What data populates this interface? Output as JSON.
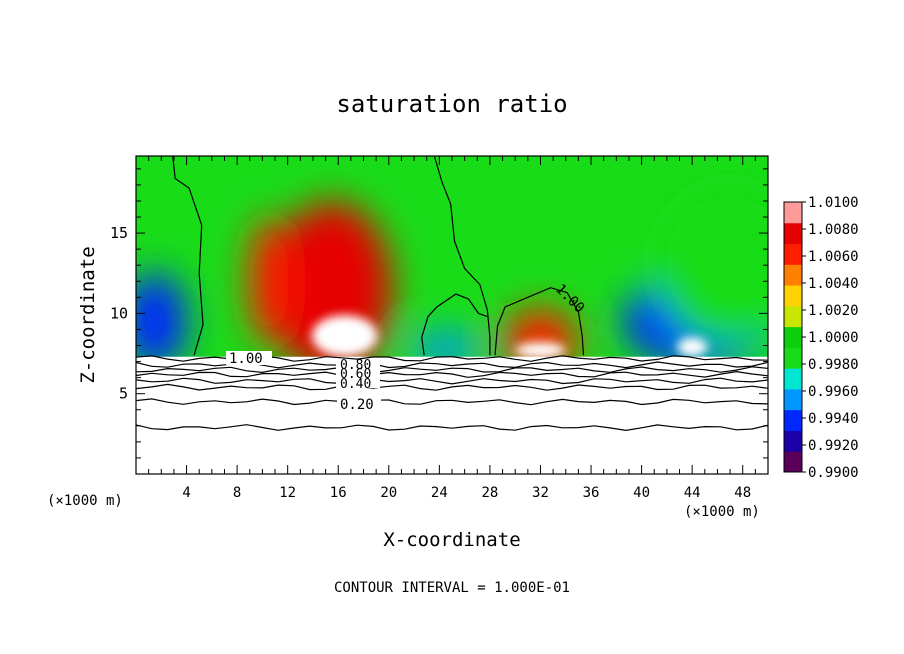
{
  "chart_data": {
    "type": "heatmap",
    "title": "saturation ratio",
    "xlabel": "X-coordinate",
    "ylabel": "Z-coordinate",
    "x_unit": "(×1000 m)",
    "y_unit": "(×1000 m)",
    "xlim": [
      0,
      50
    ],
    "ylim": [
      0,
      19.8
    ],
    "x_ticks": [
      "4",
      "8",
      "12",
      "16",
      "20",
      "24",
      "28",
      "32",
      "36",
      "40",
      "44",
      "48"
    ],
    "y_ticks": [
      "5",
      "10",
      "15"
    ],
    "contour_interval_text": "CONTOUR INTERVAL = 1.000E-01",
    "contour_labels": [
      "1.00",
      "1.00",
      "0.80",
      "0.60",
      "0.40",
      "0.20"
    ],
    "colorbar": {
      "min": 0.99,
      "max": 1.01,
      "tick_labels": [
        "1.0100",
        "1.0080",
        "1.0060",
        "1.0040",
        "1.0020",
        "1.0000",
        "0.9980",
        "0.9960",
        "0.9940",
        "0.9920",
        "0.9900"
      ],
      "colors": [
        "#5a005a",
        "#1c00a8",
        "#0028ff",
        "#0096ff",
        "#00e6d2",
        "#19dc19",
        "#0ecf0e",
        "#c8e600",
        "#ffd200",
        "#ff8000",
        "#ff1e00",
        "#e60000",
        "#ff9a9a"
      ]
    },
    "field_blobs": [
      {
        "x": 15.5,
        "z": 11.5,
        "rx": 4.8,
        "rz": 5.5,
        "value": 1.008
      },
      {
        "x": 10.5,
        "z": 12.0,
        "rx": 1.6,
        "rz": 4.0,
        "value": 1.007
      },
      {
        "x": 32.0,
        "z": 8.3,
        "rx": 3.0,
        "rz": 2.0,
        "value": 1.006
      },
      {
        "x": 1.5,
        "z": 9.5,
        "rx": 2.5,
        "rz": 3.0,
        "value": 0.9925
      },
      {
        "x": 44.5,
        "z": 9.5,
        "rx": 6.0,
        "rz": 2.8,
        "value": 0.9925
      },
      {
        "x": 24.5,
        "z": 7.8,
        "rx": 3.0,
        "rz": 1.0,
        "value": 0.9955
      },
      {
        "x": 47.0,
        "z": 13.0,
        "rx": 6.0,
        "rz": 5.0,
        "value": 0.9975
      }
    ],
    "saturated_cores": [
      {
        "x": 16.5,
        "z": 8.6,
        "rx": 2.6,
        "rz": 1.3,
        "value": 1.01
      },
      {
        "x": 32.0,
        "z": 7.7,
        "rx": 2.0,
        "rz": 0.5,
        "value": 1.01
      },
      {
        "x": 44.0,
        "z": 7.9,
        "rx": 1.2,
        "rz": 0.6,
        "value": 1.01
      }
    ],
    "unsaturated_layer_top_z": 7.3,
    "contour_lines_below_z": [
      7.2,
      6.8,
      6.5,
      6.2,
      5.8,
      5.4,
      4.5,
      2.9
    ],
    "contour_1_00_paths": [
      [
        [
          2.9,
          19.8
        ],
        [
          3.1,
          18.4
        ],
        [
          4.2,
          17.8
        ],
        [
          5.2,
          15.5
        ],
        [
          5.0,
          12.5
        ],
        [
          5.3,
          9.3
        ],
        [
          4.6,
          7.4
        ]
      ],
      [
        [
          23.6,
          19.8
        ],
        [
          24.2,
          18.2
        ],
        [
          24.9,
          16.8
        ],
        [
          25.2,
          14.5
        ],
        [
          26.0,
          12.8
        ],
        [
          27.2,
          11.8
        ],
        [
          27.8,
          10.2
        ],
        [
          28.0,
          8.5
        ],
        [
          28.0,
          7.4
        ]
      ],
      [
        [
          22.8,
          7.4
        ],
        [
          22.6,
          8.5
        ],
        [
          23.1,
          9.8
        ],
        [
          23.8,
          10.4
        ],
        [
          25.3,
          11.2
        ],
        [
          26.3,
          10.9
        ],
        [
          27.1,
          10.0
        ],
        [
          27.8,
          9.8
        ]
      ],
      [
        [
          28.4,
          7.4
        ],
        [
          28.6,
          9.2
        ],
        [
          29.2,
          10.4
        ],
        [
          31.0,
          11.0
        ],
        [
          32.8,
          11.6
        ],
        [
          34.1,
          11.3
        ],
        [
          35.0,
          10.1
        ],
        [
          35.3,
          8.6
        ],
        [
          35.4,
          7.4
        ]
      ]
    ]
  }
}
